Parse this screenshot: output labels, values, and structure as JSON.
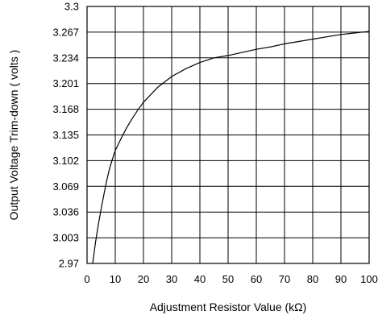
{
  "chart_data": {
    "type": "line",
    "title": "",
    "xlabel": "Adjustment Resistor Value (kΩ)",
    "ylabel": "Output Voltage Trim-down ( volts )",
    "xlim": [
      0,
      100
    ],
    "ylim": [
      2.97,
      3.3
    ],
    "x_ticks": [
      "0",
      "10",
      "20",
      "30",
      "40",
      "50",
      "60",
      "70",
      "80",
      "90",
      "100"
    ],
    "y_ticks": [
      "3.3",
      "3.267",
      "3.234",
      "3.201",
      "3.168",
      "3.135",
      "3.102",
      "3.069",
      "3.036",
      "3.003",
      "2.97"
    ],
    "grid": true,
    "legend": "none",
    "line_color": "#000000",
    "series": [
      {
        "x": [
          2,
          3,
          4,
          5,
          6,
          7,
          8,
          9,
          10,
          12,
          14,
          16,
          18,
          20,
          25,
          30,
          35,
          40,
          45,
          50,
          55,
          60,
          65,
          70,
          75,
          80,
          85,
          90,
          95,
          100
        ],
        "values": [
          2.97,
          2.997,
          3.02,
          3.04,
          3.059,
          3.077,
          3.092,
          3.104,
          3.115,
          3.13,
          3.144,
          3.156,
          3.167,
          3.177,
          3.196,
          3.21,
          3.22,
          3.228,
          3.234,
          3.237,
          3.241,
          3.245,
          3.248,
          3.252,
          3.255,
          3.258,
          3.261,
          3.264,
          3.266,
          3.268
        ]
      }
    ]
  }
}
